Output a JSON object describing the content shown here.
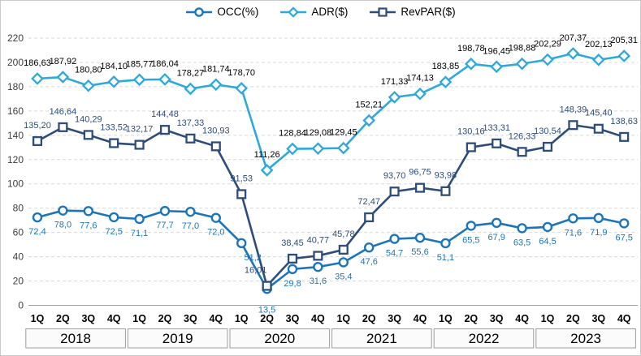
{
  "chart_data": {
    "type": "line",
    "title": "",
    "legend_position": "top-center",
    "grid": "horizontal-dashed",
    "number_format": {
      "decimal_separator": ","
    },
    "axis": {
      "ymin": 0,
      "ymax": 220,
      "ystep": 20
    },
    "years": [
      "2018",
      "2019",
      "2020",
      "2021",
      "2022",
      "2023"
    ],
    "quarters_per_year": [
      "1Q",
      "2Q",
      "3Q",
      "4Q"
    ],
    "series": [
      {
        "name": "OCC(%)",
        "marker": "circle",
        "color": "#1B75BC",
        "label_color": "#1B75BC",
        "label_position": "below",
        "decimals": 1,
        "values": [
          72.4,
          78.0,
          77.6,
          72.5,
          71.1,
          77.7,
          77.0,
          72.0,
          51.2,
          13.5,
          29.8,
          31.6,
          35.4,
          47.6,
          54.7,
          55.6,
          51.1,
          65.5,
          67.9,
          63.5,
          64.5,
          71.6,
          71.9,
          67.5
        ]
      },
      {
        "name": "ADR($)",
        "marker": "diamond",
        "color": "#2FA8DC",
        "label_color": "#000000",
        "label_position": "above",
        "decimals": 2,
        "values": [
          186.63,
          187.92,
          180.8,
          184.1,
          185.77,
          186.04,
          178.27,
          181.74,
          178.7,
          111.26,
          128.84,
          129.08,
          129.45,
          152.21,
          171.33,
          174.13,
          183.85,
          198.78,
          196.45,
          198.88,
          202.29,
          207.37,
          202.13,
          205.31
        ]
      },
      {
        "name": "RevPAR($)",
        "marker": "square",
        "color": "#2E4D7B",
        "label_color": "#2E4D7B",
        "label_position": "above",
        "decimals": 2,
        "values": [
          135.2,
          146.64,
          140.29,
          133.52,
          132.17,
          144.48,
          137.33,
          130.93,
          91.53,
          16.01,
          38.45,
          40.77,
          45.78,
          72.47,
          93.7,
          96.75,
          93.98,
          130.16,
          133.31,
          126.33,
          130.54,
          148.39,
          145.4,
          138.63
        ]
      }
    ]
  }
}
